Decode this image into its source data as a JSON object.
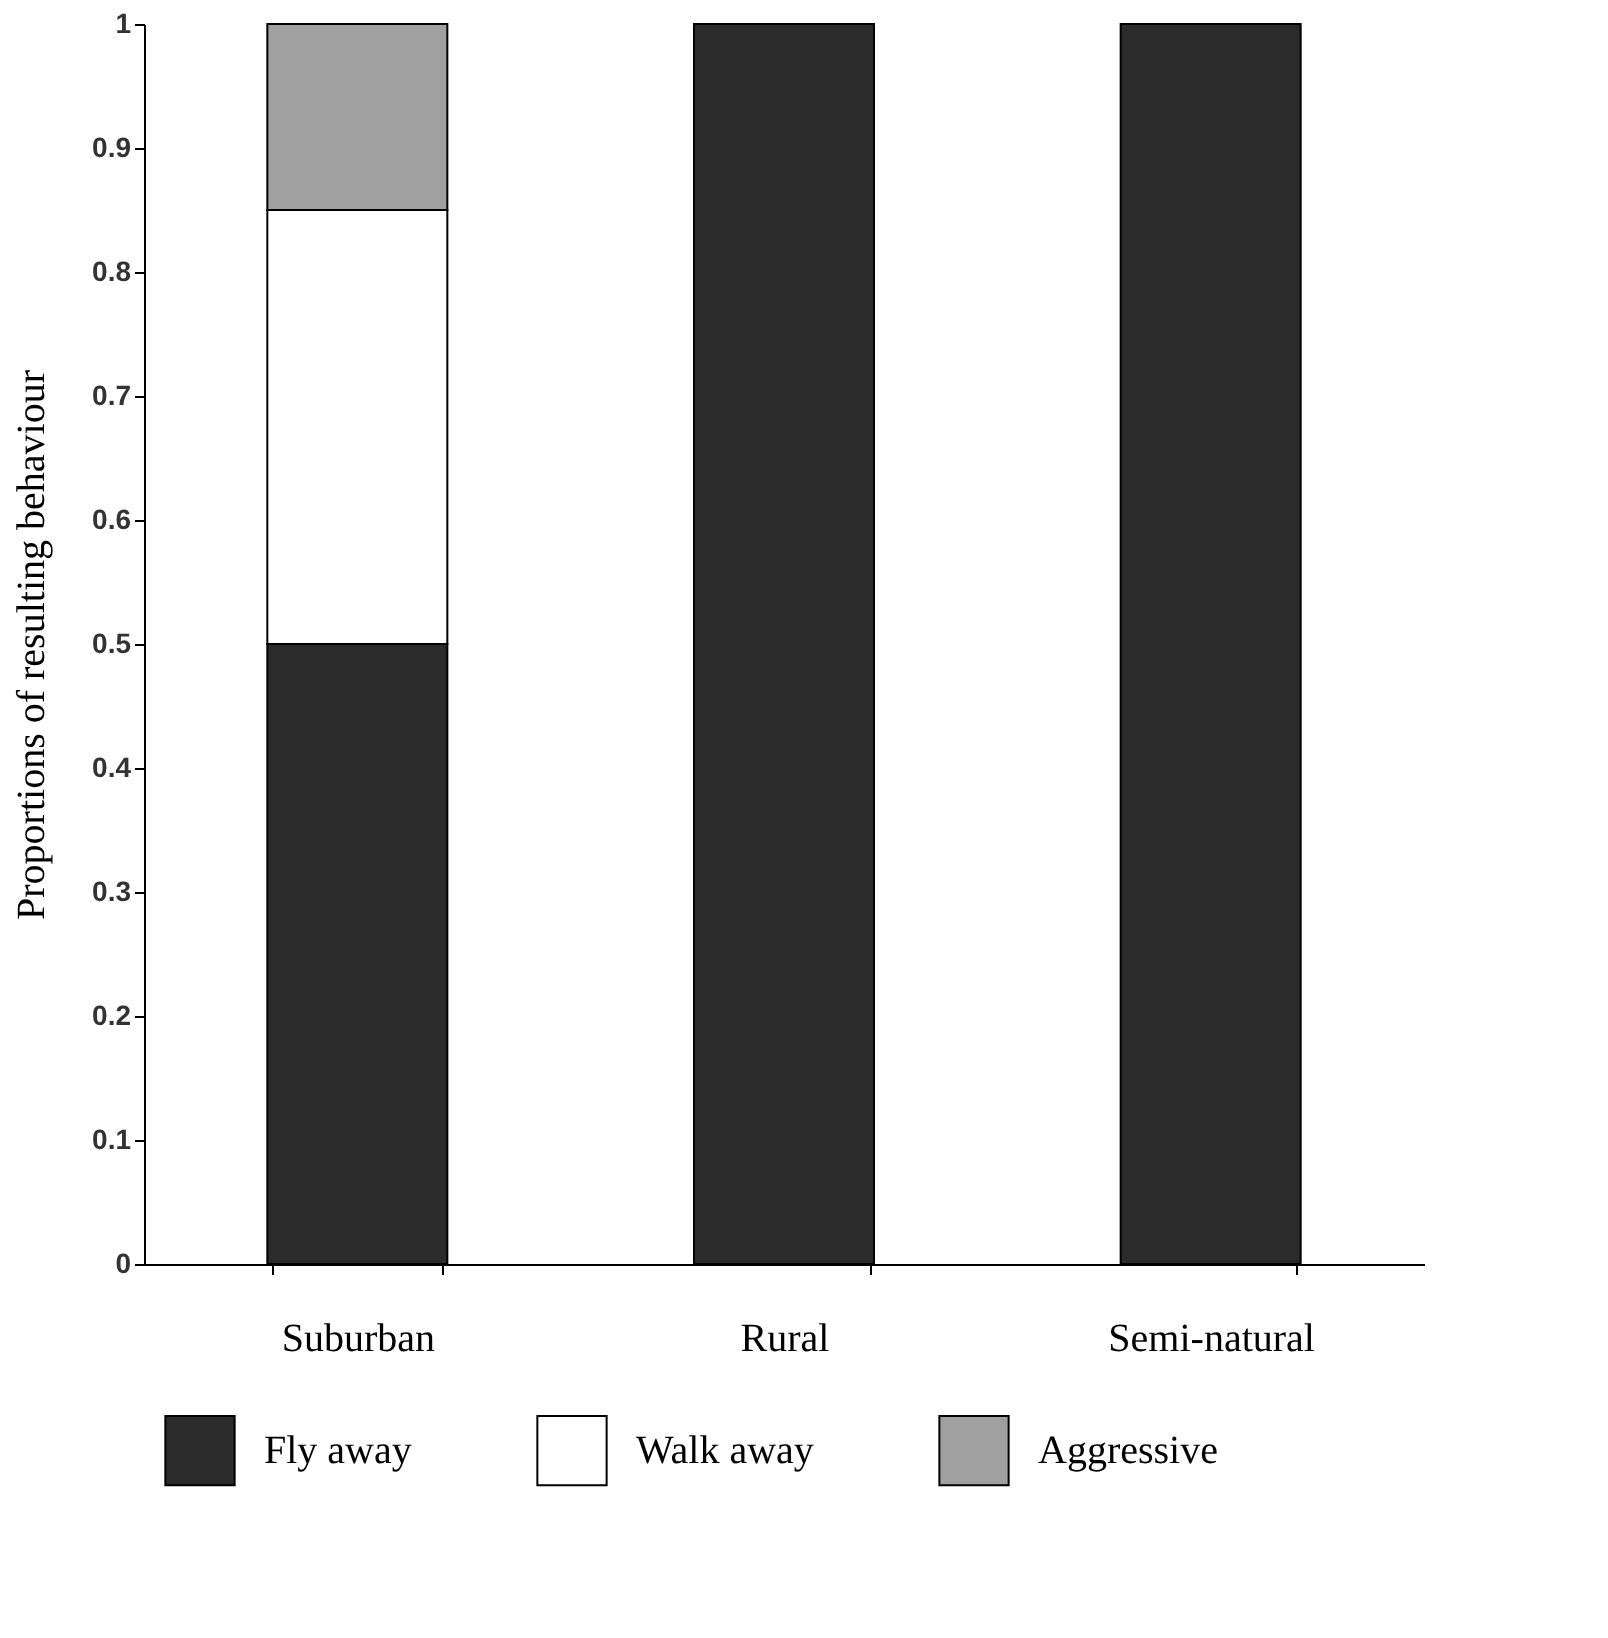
{
  "chart_data": {
    "type": "bar",
    "stacked": true,
    "ylabel": "Proportions of resulting behaviour",
    "categories": [
      "Suburban",
      "Rural",
      "Semi-natural"
    ],
    "series": [
      {
        "name": "Fly away",
        "color": "#2b2b2b",
        "values": [
          0.5,
          1,
          1
        ]
      },
      {
        "name": "Walk away",
        "color": "#ffffff",
        "values": [
          0.35,
          null,
          null
        ]
      },
      {
        "name": "Aggressive",
        "color": "#a0a0a0",
        "values": [
          0.15,
          null,
          null
        ]
      }
    ],
    "ylim": [
      0,
      1
    ],
    "yticks": [
      {
        "value": 0,
        "label": "0"
      },
      0.1,
      0.2,
      0.3,
      0.4,
      0.5,
      0.6,
      0.7,
      0.8,
      0.9,
      {
        "value": 1,
        "label": "1"
      }
    ],
    "grid": false,
    "legend": "bottom"
  }
}
